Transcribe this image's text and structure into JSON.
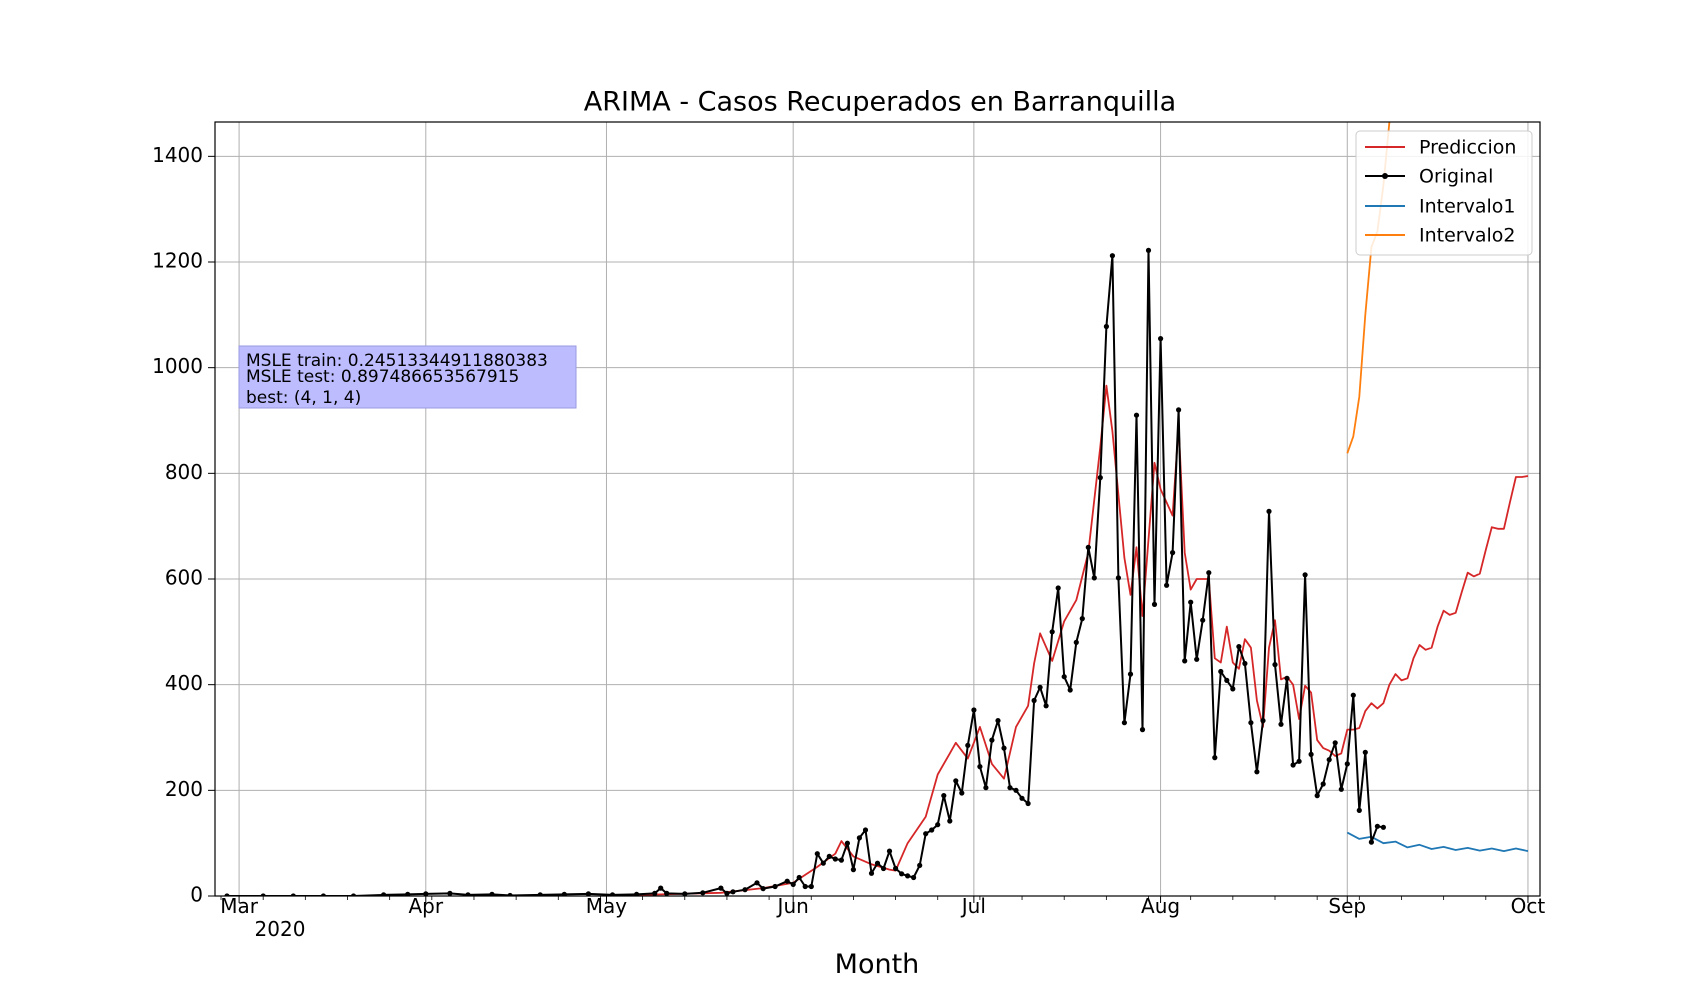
{
  "chart_data": {
    "type": "line",
    "title": "ARIMA - Casos Recuperados en Barranquilla",
    "xlabel": "Month",
    "ylabel": "",
    "ylim": [
      0,
      1465
    ],
    "xlim": [
      "2020-02-26",
      "2020-10-03"
    ],
    "grid": true,
    "legend_position": "top-right",
    "x_tick_labels": [
      "Mar",
      "Apr",
      "May",
      "Jun",
      "Jul",
      "Aug",
      "Sep",
      "Oct"
    ],
    "x_tick_dates": [
      "2020-03-01",
      "2020-04-01",
      "2020-05-01",
      "2020-06-01",
      "2020-07-01",
      "2020-08-01",
      "2020-09-01",
      "2020-10-01"
    ],
    "x_year_label": "2020",
    "y_ticks": [
      0,
      200,
      400,
      600,
      800,
      1000,
      1200,
      1400
    ],
    "annotation": [
      "MSLE train: 0.24513344911880383",
      "MSLE test: 0.897486653567915",
      "best: (4, 1, 4)"
    ],
    "colors": {
      "Prediccion": "#d62728",
      "Original": "#000000",
      "Intervalo1": "#1f77b4",
      "Intervalo2": "#ff7f0e",
      "annotation_box": "#bcbcff"
    },
    "series": [
      {
        "name": "Prediccion",
        "points": [
          [
            "2020-05-01",
            0
          ],
          [
            "2020-05-10",
            3
          ],
          [
            "2020-05-20",
            6
          ],
          [
            "2020-05-27",
            15
          ],
          [
            "2020-06-01",
            25
          ],
          [
            "2020-06-05",
            55
          ],
          [
            "2020-06-08",
            80
          ],
          [
            "2020-06-09",
            104
          ],
          [
            "2020-06-11",
            75
          ],
          [
            "2020-06-14",
            60
          ],
          [
            "2020-06-17",
            50
          ],
          [
            "2020-06-18",
            48
          ],
          [
            "2020-06-20",
            100
          ],
          [
            "2020-06-23",
            150
          ],
          [
            "2020-06-25",
            230
          ],
          [
            "2020-06-27",
            270
          ],
          [
            "2020-06-28",
            290
          ],
          [
            "2020-06-30",
            260
          ],
          [
            "2020-07-02",
            320
          ],
          [
            "2020-07-04",
            250
          ],
          [
            "2020-07-06",
            222
          ],
          [
            "2020-07-08",
            320
          ],
          [
            "2020-07-10",
            360
          ],
          [
            "2020-07-11",
            440
          ],
          [
            "2020-07-12",
            497
          ],
          [
            "2020-07-14",
            445
          ],
          [
            "2020-07-16",
            520
          ],
          [
            "2020-07-18",
            560
          ],
          [
            "2020-07-20",
            650
          ],
          [
            "2020-07-22",
            850
          ],
          [
            "2020-07-23",
            966
          ],
          [
            "2020-07-24",
            880
          ],
          [
            "2020-07-26",
            640
          ],
          [
            "2020-07-27",
            570
          ],
          [
            "2020-07-28",
            660
          ],
          [
            "2020-07-29",
            530
          ],
          [
            "2020-07-31",
            820
          ],
          [
            "2020-08-01",
            770
          ],
          [
            "2020-08-03",
            720
          ],
          [
            "2020-08-04",
            890
          ],
          [
            "2020-08-05",
            650
          ],
          [
            "2020-08-06",
            580
          ],
          [
            "2020-08-07",
            600
          ],
          [
            "2020-08-09",
            600
          ],
          [
            "2020-08-10",
            450
          ],
          [
            "2020-08-11",
            442
          ],
          [
            "2020-08-12",
            510
          ],
          [
            "2020-08-13",
            442
          ],
          [
            "2020-08-14",
            430
          ],
          [
            "2020-08-15",
            486
          ],
          [
            "2020-08-16",
            470
          ],
          [
            "2020-08-17",
            370
          ],
          [
            "2020-08-18",
            320
          ],
          [
            "2020-08-19",
            470
          ],
          [
            "2020-08-20",
            522
          ],
          [
            "2020-08-21",
            410
          ],
          [
            "2020-08-22",
            415
          ],
          [
            "2020-08-23",
            400
          ],
          [
            "2020-08-24",
            335
          ],
          [
            "2020-08-25",
            398
          ],
          [
            "2020-08-26",
            385
          ],
          [
            "2020-08-27",
            295
          ],
          [
            "2020-08-28",
            280
          ],
          [
            "2020-08-29",
            275
          ],
          [
            "2020-08-30",
            265
          ],
          [
            "2020-08-31",
            270
          ],
          [
            "2020-09-01",
            315
          ],
          [
            "2020-09-02",
            315
          ],
          [
            "2020-09-03",
            318
          ],
          [
            "2020-09-04",
            350
          ],
          [
            "2020-09-05",
            365
          ],
          [
            "2020-09-06",
            355
          ],
          [
            "2020-09-07",
            365
          ],
          [
            "2020-09-08",
            400
          ],
          [
            "2020-09-09",
            420
          ],
          [
            "2020-09-10",
            408
          ],
          [
            "2020-09-11",
            412
          ],
          [
            "2020-09-12",
            450
          ],
          [
            "2020-09-13",
            475
          ],
          [
            "2020-09-14",
            466
          ],
          [
            "2020-09-15",
            470
          ],
          [
            "2020-09-16",
            510
          ],
          [
            "2020-09-17",
            540
          ],
          [
            "2020-09-18",
            532
          ],
          [
            "2020-09-19",
            536
          ],
          [
            "2020-09-20",
            575
          ],
          [
            "2020-09-21",
            612
          ],
          [
            "2020-09-22",
            605
          ],
          [
            "2020-09-23",
            610
          ],
          [
            "2020-09-24",
            655
          ],
          [
            "2020-09-25",
            698
          ],
          [
            "2020-09-26",
            695
          ],
          [
            "2020-09-27",
            695
          ],
          [
            "2020-09-28",
            745
          ],
          [
            "2020-09-29",
            793
          ],
          [
            "2020-09-30",
            793
          ],
          [
            "2020-10-01",
            795
          ]
        ]
      },
      {
        "name": "Original",
        "points": [
          [
            "2020-02-28",
            0
          ],
          [
            "2020-03-05",
            0
          ],
          [
            "2020-03-10",
            0
          ],
          [
            "2020-03-15",
            0
          ],
          [
            "2020-03-20",
            0
          ],
          [
            "2020-03-25",
            2
          ],
          [
            "2020-03-29",
            3
          ],
          [
            "2020-04-01",
            4
          ],
          [
            "2020-04-05",
            5
          ],
          [
            "2020-04-08",
            2
          ],
          [
            "2020-04-12",
            3
          ],
          [
            "2020-04-15",
            1
          ],
          [
            "2020-04-20",
            2
          ],
          [
            "2020-04-24",
            3
          ],
          [
            "2020-04-28",
            4
          ],
          [
            "2020-05-02",
            2
          ],
          [
            "2020-05-06",
            3
          ],
          [
            "2020-05-09",
            5
          ],
          [
            "2020-05-10",
            15
          ],
          [
            "2020-05-11",
            5
          ],
          [
            "2020-05-14",
            4
          ],
          [
            "2020-05-17",
            6
          ],
          [
            "2020-05-20",
            15
          ],
          [
            "2020-05-21",
            5
          ],
          [
            "2020-05-22",
            8
          ],
          [
            "2020-05-24",
            12
          ],
          [
            "2020-05-26",
            25
          ],
          [
            "2020-05-27",
            14
          ],
          [
            "2020-05-29",
            18
          ],
          [
            "2020-05-31",
            28
          ],
          [
            "2020-06-01",
            22
          ],
          [
            "2020-06-02",
            35
          ],
          [
            "2020-06-03",
            18
          ],
          [
            "2020-06-04",
            18
          ],
          [
            "2020-06-05",
            80
          ],
          [
            "2020-06-06",
            62
          ],
          [
            "2020-06-07",
            75
          ],
          [
            "2020-06-08",
            70
          ],
          [
            "2020-06-09",
            68
          ],
          [
            "2020-06-10",
            100
          ],
          [
            "2020-06-11",
            50
          ],
          [
            "2020-06-12",
            110
          ],
          [
            "2020-06-13",
            125
          ],
          [
            "2020-06-14",
            43
          ],
          [
            "2020-06-15",
            62
          ],
          [
            "2020-06-16",
            52
          ],
          [
            "2020-06-17",
            85
          ],
          [
            "2020-06-18",
            52
          ],
          [
            "2020-06-19",
            42
          ],
          [
            "2020-06-20",
            38
          ],
          [
            "2020-06-21",
            35
          ],
          [
            "2020-06-22",
            58
          ],
          [
            "2020-06-23",
            118
          ],
          [
            "2020-06-24",
            125
          ],
          [
            "2020-06-25",
            135
          ],
          [
            "2020-06-26",
            190
          ],
          [
            "2020-06-27",
            142
          ],
          [
            "2020-06-28",
            218
          ],
          [
            "2020-06-29",
            195
          ],
          [
            "2020-06-30",
            285
          ],
          [
            "2020-07-01",
            352
          ],
          [
            "2020-07-02",
            245
          ],
          [
            "2020-07-03",
            205
          ],
          [
            "2020-07-04",
            295
          ],
          [
            "2020-07-05",
            332
          ],
          [
            "2020-07-06",
            280
          ],
          [
            "2020-07-07",
            205
          ],
          [
            "2020-07-08",
            200
          ],
          [
            "2020-07-09",
            185
          ],
          [
            "2020-07-10",
            175
          ],
          [
            "2020-07-11",
            370
          ],
          [
            "2020-07-12",
            395
          ],
          [
            "2020-07-13",
            360
          ],
          [
            "2020-07-14",
            500
          ],
          [
            "2020-07-15",
            583
          ],
          [
            "2020-07-16",
            415
          ],
          [
            "2020-07-17",
            390
          ],
          [
            "2020-07-18",
            480
          ],
          [
            "2020-07-19",
            525
          ],
          [
            "2020-07-20",
            660
          ],
          [
            "2020-07-21",
            602
          ],
          [
            "2020-07-22",
            792
          ],
          [
            "2020-07-23",
            1078
          ],
          [
            "2020-07-24",
            1212
          ],
          [
            "2020-07-25",
            602
          ],
          [
            "2020-07-26",
            328
          ],
          [
            "2020-07-27",
            420
          ],
          [
            "2020-07-28",
            910
          ],
          [
            "2020-07-29",
            315
          ],
          [
            "2020-07-30",
            1222
          ],
          [
            "2020-07-31",
            552
          ],
          [
            "2020-08-01",
            1055
          ],
          [
            "2020-08-02",
            588
          ],
          [
            "2020-08-03",
            650
          ],
          [
            "2020-08-04",
            920
          ],
          [
            "2020-08-05",
            445
          ],
          [
            "2020-08-06",
            556
          ],
          [
            "2020-08-07",
            448
          ],
          [
            "2020-08-08",
            522
          ],
          [
            "2020-08-09",
            612
          ],
          [
            "2020-08-10",
            262
          ],
          [
            "2020-08-11",
            425
          ],
          [
            "2020-08-12",
            408
          ],
          [
            "2020-08-13",
            392
          ],
          [
            "2020-08-14",
            472
          ],
          [
            "2020-08-15",
            440
          ],
          [
            "2020-08-16",
            328
          ],
          [
            "2020-08-17",
            235
          ],
          [
            "2020-08-18",
            332
          ],
          [
            "2020-08-19",
            728
          ],
          [
            "2020-08-20",
            438
          ],
          [
            "2020-08-21",
            325
          ],
          [
            "2020-08-22",
            412
          ],
          [
            "2020-08-23",
            248
          ],
          [
            "2020-08-24",
            255
          ],
          [
            "2020-08-25",
            608
          ],
          [
            "2020-08-26",
            268
          ],
          [
            "2020-08-27",
            190
          ],
          [
            "2020-08-28",
            212
          ],
          [
            "2020-08-29",
            258
          ],
          [
            "2020-08-30",
            290
          ],
          [
            "2020-08-31",
            202
          ],
          [
            "2020-09-01",
            250
          ],
          [
            "2020-09-02",
            380
          ],
          [
            "2020-09-03",
            162
          ],
          [
            "2020-09-04",
            272
          ],
          [
            "2020-09-05",
            102
          ],
          [
            "2020-09-06",
            132
          ],
          [
            "2020-09-07",
            130
          ]
        ]
      },
      {
        "name": "Intervalo1",
        "points": [
          [
            "2020-09-01",
            120
          ],
          [
            "2020-09-03",
            108
          ],
          [
            "2020-09-05",
            112
          ],
          [
            "2020-09-07",
            100
          ],
          [
            "2020-09-09",
            103
          ],
          [
            "2020-09-11",
            92
          ],
          [
            "2020-09-13",
            97
          ],
          [
            "2020-09-15",
            89
          ],
          [
            "2020-09-17",
            93
          ],
          [
            "2020-09-19",
            87
          ],
          [
            "2020-09-21",
            91
          ],
          [
            "2020-09-23",
            86
          ],
          [
            "2020-09-25",
            90
          ],
          [
            "2020-09-27",
            85
          ],
          [
            "2020-09-29",
            90
          ],
          [
            "2020-10-01",
            85
          ]
        ]
      },
      {
        "name": "Intervalo2",
        "points": [
          [
            "2020-09-01",
            838
          ],
          [
            "2020-09-02",
            870
          ],
          [
            "2020-09-03",
            945
          ],
          [
            "2020-09-04",
            1100
          ],
          [
            "2020-09-05",
            1228
          ],
          [
            "2020-09-06",
            1258
          ],
          [
            "2020-09-07",
            1345
          ],
          [
            "2020-09-08",
            1465
          ]
        ]
      }
    ]
  }
}
